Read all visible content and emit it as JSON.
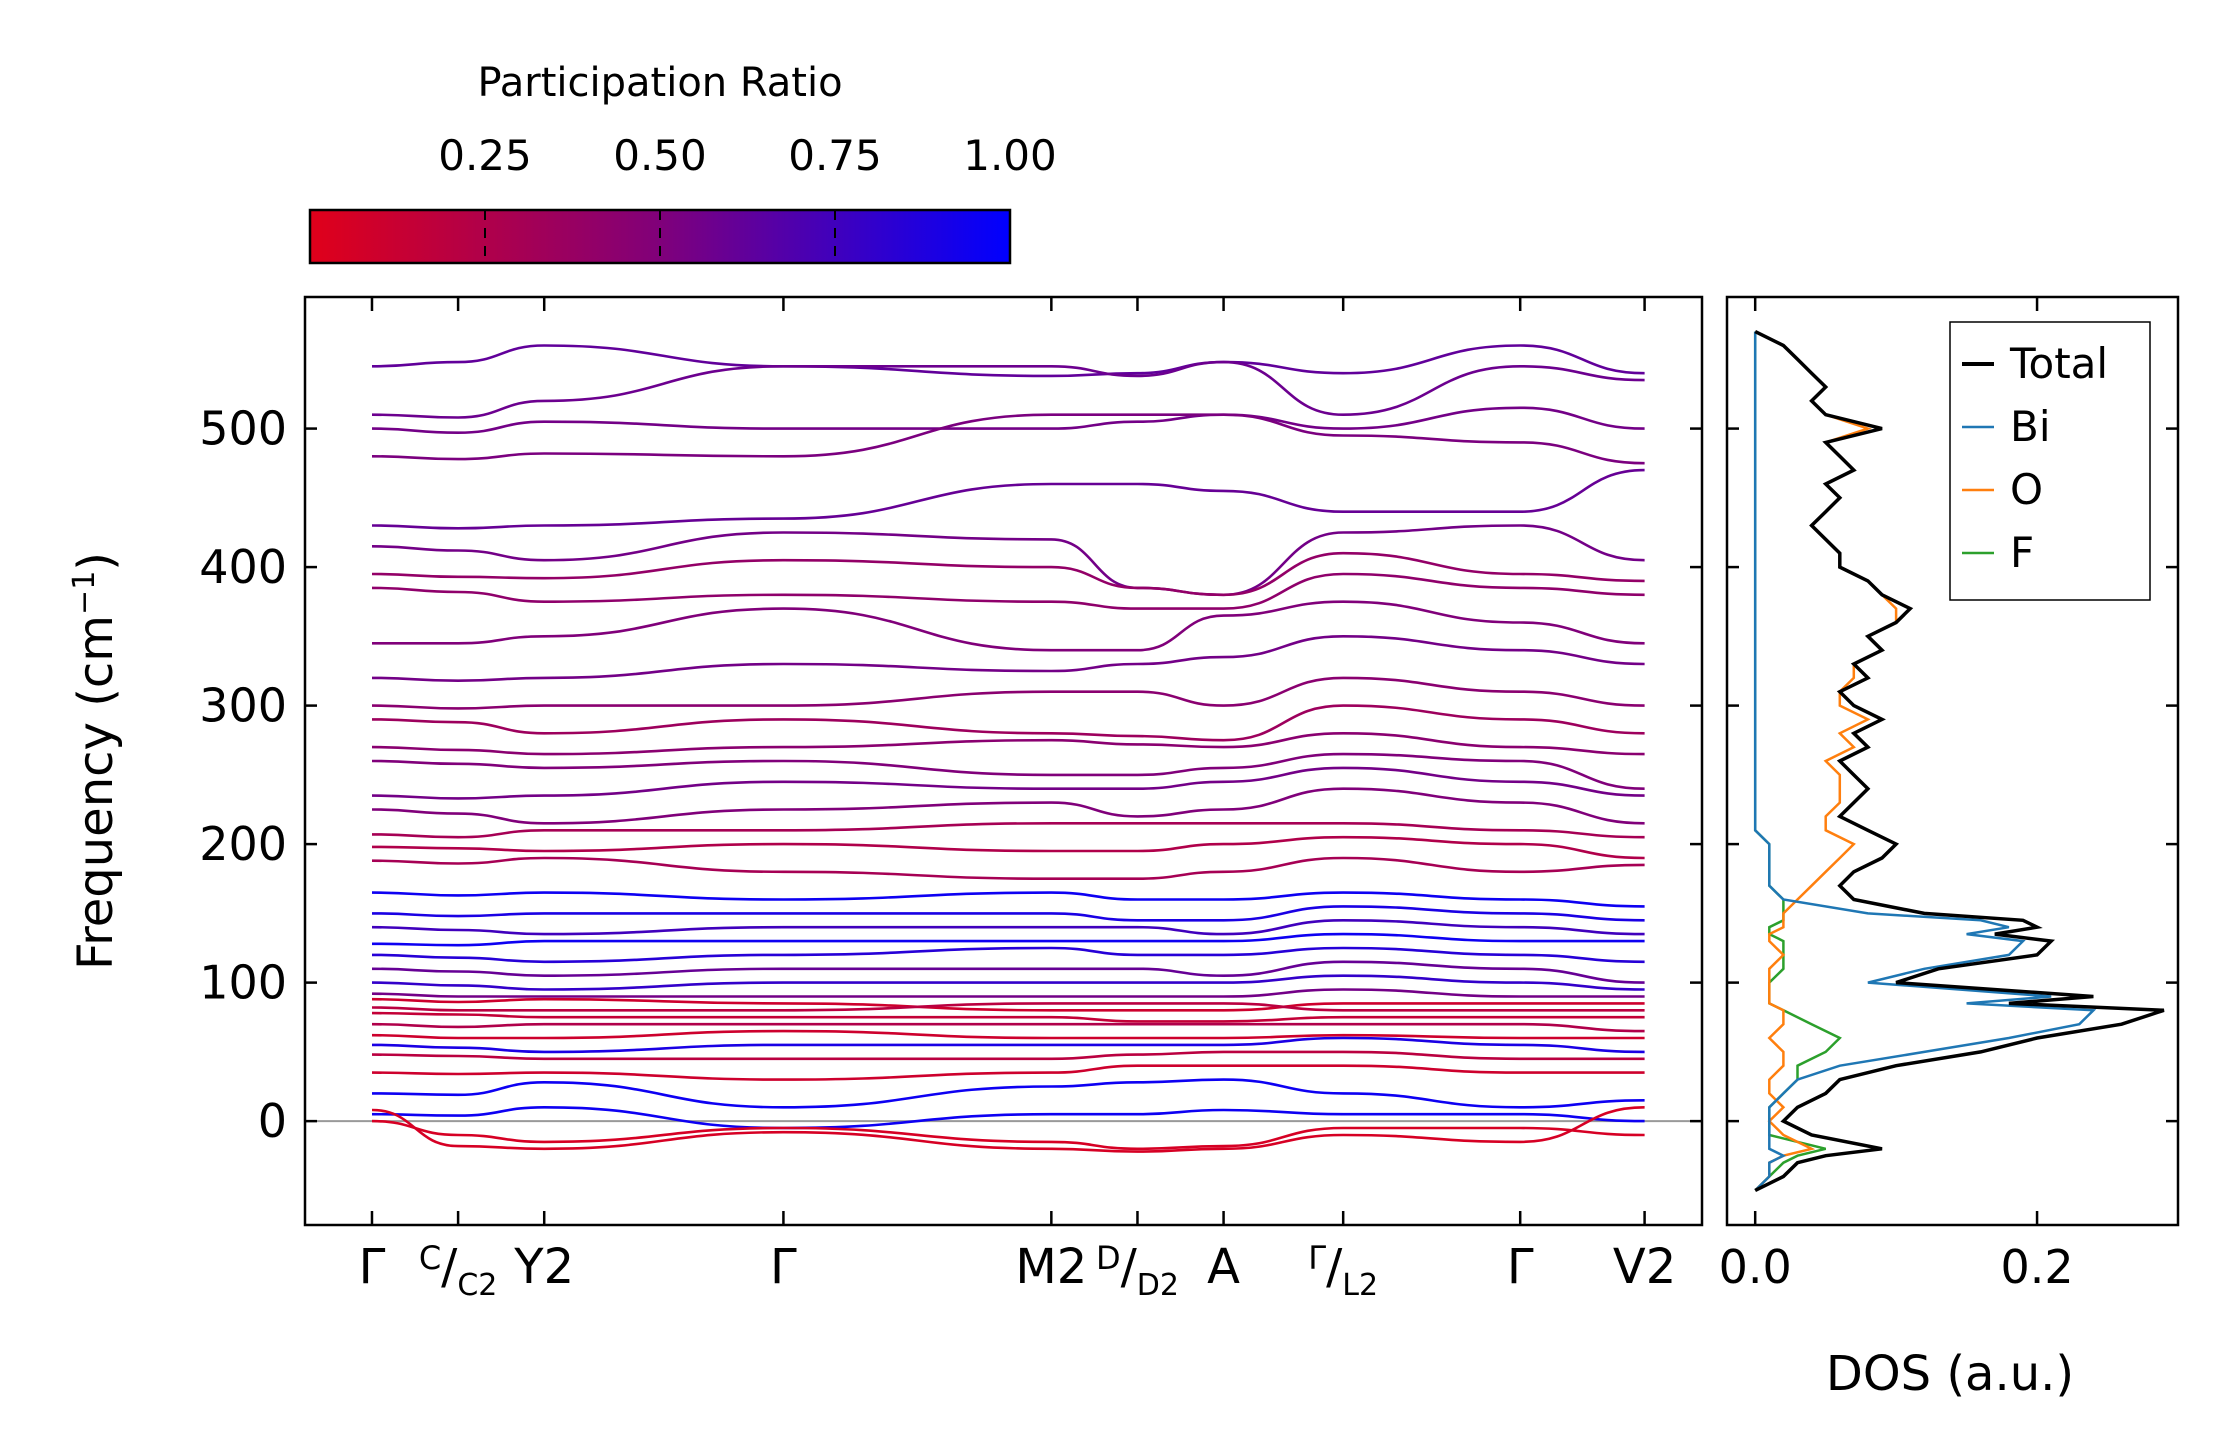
{
  "chart_data": [
    {
      "type": "line",
      "panel": "phonon-band-structure",
      "ylabel": "Frequency (cm",
      "ylabel_sup": "−1",
      "ylabel_close": ")",
      "ylim": [
        -75,
        595
      ],
      "x_positions": [
        0,
        0.9,
        1.8,
        4.3,
        7.1,
        8.0,
        8.9,
        10.15,
        12.0,
        13.3
      ],
      "xlim": [
        -0.7,
        13.9
      ],
      "x_tick_labels": [
        {
          "x": 0,
          "text": "Γ"
        },
        {
          "x": 0.9,
          "text": "C",
          "text2": "/",
          "sub": "C2"
        },
        {
          "x": 1.8,
          "text": "Y",
          "sub": "2"
        },
        {
          "x": 4.3,
          "text": "Γ"
        },
        {
          "x": 7.1,
          "text": "M",
          "sub": "2"
        },
        {
          "x": 8.0,
          "text": "D",
          "text2": "/",
          "sub": "D2"
        },
        {
          "x": 8.9,
          "text": "A"
        },
        {
          "x": 10.15,
          "text": "Γ",
          "text2": "/",
          "sub": "L2"
        },
        {
          "x": 12.0,
          "text": "Γ"
        },
        {
          "x": 13.3,
          "text": "V",
          "sub": "2"
        }
      ],
      "y_ticks": [
        0,
        100,
        200,
        300,
        400,
        500
      ],
      "y_tick_labels": [
        "0",
        "100",
        "200",
        "300",
        "400",
        "500"
      ],
      "zero_line": 0,
      "colormap": {
        "low": "#e0001a",
        "mid": "#80007a",
        "high": "#0000ff"
      },
      "bands": [
        {
          "ys": [
            545,
            548,
            560,
            545,
            538,
            540,
            548,
            540,
            560,
            540
          ],
          "pr": 0.62
        },
        {
          "ys": [
            510,
            508,
            520,
            545,
            545,
            538,
            548,
            510,
            545,
            535
          ],
          "pr": 0.58
        },
        {
          "ys": [
            500,
            497,
            505,
            500,
            500,
            505,
            510,
            500,
            515,
            500
          ],
          "pr": 0.55
        },
        {
          "ys": [
            480,
            478,
            482,
            480,
            510,
            510,
            510,
            495,
            490,
            475
          ],
          "pr": 0.52
        },
        {
          "ys": [
            430,
            428,
            430,
            435,
            460,
            460,
            455,
            440,
            440,
            470
          ],
          "pr": 0.6
        },
        {
          "ys": [
            415,
            412,
            405,
            425,
            420,
            385,
            380,
            425,
            430,
            405
          ],
          "pr": 0.55
        },
        {
          "ys": [
            395,
            393,
            392,
            405,
            400,
            385,
            380,
            410,
            395,
            390
          ],
          "pr": 0.4
        },
        {
          "ys": [
            385,
            382,
            375,
            380,
            375,
            370,
            370,
            395,
            385,
            380
          ],
          "pr": 0.42
        },
        {
          "ys": [
            345,
            345,
            350,
            370,
            340,
            340,
            365,
            375,
            360,
            345
          ],
          "pr": 0.5
        },
        {
          "ys": [
            320,
            318,
            320,
            330,
            325,
            330,
            335,
            350,
            340,
            330
          ],
          "pr": 0.55
        },
        {
          "ys": [
            300,
            298,
            300,
            300,
            310,
            310,
            300,
            320,
            310,
            300
          ],
          "pr": 0.45
        },
        {
          "ys": [
            290,
            288,
            280,
            290,
            280,
            278,
            275,
            300,
            290,
            280
          ],
          "pr": 0.35
        },
        {
          "ys": [
            270,
            268,
            265,
            270,
            275,
            272,
            270,
            280,
            270,
            265
          ],
          "pr": 0.45
        },
        {
          "ys": [
            260,
            258,
            255,
            260,
            250,
            250,
            255,
            265,
            260,
            240
          ],
          "pr": 0.5
        },
        {
          "ys": [
            235,
            233,
            235,
            245,
            240,
            240,
            245,
            255,
            245,
            235
          ],
          "pr": 0.55
        },
        {
          "ys": [
            225,
            222,
            215,
            225,
            230,
            220,
            225,
            240,
            230,
            215
          ],
          "pr": 0.5
        },
        {
          "ys": [
            207,
            205,
            210,
            210,
            215,
            215,
            215,
            215,
            210,
            205
          ],
          "pr": 0.3
        },
        {
          "ys": [
            198,
            197,
            195,
            200,
            195,
            195,
            200,
            205,
            200,
            190
          ],
          "pr": 0.25
        },
        {
          "ys": [
            188,
            186,
            190,
            180,
            175,
            175,
            180,
            190,
            180,
            185
          ],
          "pr": 0.3
        },
        {
          "ys": [
            165,
            163,
            165,
            160,
            165,
            160,
            160,
            165,
            160,
            155
          ],
          "pr": 0.95
        },
        {
          "ys": [
            150,
            148,
            150,
            150,
            150,
            145,
            145,
            155,
            150,
            145
          ],
          "pr": 0.9
        },
        {
          "ys": [
            140,
            138,
            135,
            140,
            140,
            140,
            135,
            145,
            140,
            135
          ],
          "pr": 0.75
        },
        {
          "ys": [
            128,
            127,
            130,
            130,
            130,
            130,
            130,
            135,
            130,
            130
          ],
          "pr": 0.95
        },
        {
          "ys": [
            120,
            118,
            115,
            120,
            125,
            120,
            120,
            125,
            120,
            115
          ],
          "pr": 0.85
        },
        {
          "ys": [
            110,
            108,
            105,
            110,
            110,
            110,
            105,
            115,
            110,
            100
          ],
          "pr": 0.6
        },
        {
          "ys": [
            100,
            98,
            95,
            100,
            100,
            100,
            100,
            105,
            100,
            95
          ],
          "pr": 0.8
        },
        {
          "ys": [
            92,
            90,
            90,
            90,
            90,
            90,
            90,
            95,
            90,
            90
          ],
          "pr": 0.55
        },
        {
          "ys": [
            88,
            86,
            88,
            85,
            80,
            80,
            80,
            85,
            85,
            85
          ],
          "pr": 0.1
        },
        {
          "ys": [
            82,
            80,
            80,
            80,
            85,
            85,
            85,
            80,
            80,
            80
          ],
          "pr": 0.2
        },
        {
          "ys": [
            78,
            77,
            75,
            75,
            75,
            72,
            72,
            75,
            75,
            75
          ],
          "pr": 0.15
        },
        {
          "ys": [
            70,
            68,
            70,
            70,
            70,
            70,
            70,
            70,
            70,
            65
          ],
          "pr": 0.25
        },
        {
          "ys": [
            62,
            60,
            60,
            65,
            60,
            60,
            60,
            62,
            60,
            60
          ],
          "pr": 0.1
        },
        {
          "ys": [
            55,
            53,
            50,
            55,
            55,
            55,
            55,
            60,
            55,
            50
          ],
          "pr": 0.9
        },
        {
          "ys": [
            48,
            47,
            45,
            45,
            45,
            48,
            50,
            50,
            45,
            45
          ],
          "pr": 0.2
        },
        {
          "ys": [
            35,
            34,
            35,
            30,
            35,
            40,
            40,
            40,
            35,
            35
          ],
          "pr": 0.1
        },
        {
          "ys": [
            20,
            19,
            28,
            10,
            25,
            28,
            30,
            20,
            10,
            15
          ],
          "pr": 0.95
        },
        {
          "ys": [
            5,
            4,
            10,
            -5,
            5,
            5,
            8,
            5,
            5,
            0
          ],
          "pr": 0.95
        },
        {
          "ys": [
            0,
            -10,
            -15,
            -5,
            -15,
            -20,
            -18,
            -5,
            -5,
            -10
          ],
          "pr": 0.05
        },
        {
          "ys": [
            8,
            -18,
            -20,
            -8,
            -20,
            -22,
            -20,
            -10,
            -15,
            10
          ],
          "pr": 0.05
        }
      ]
    },
    {
      "type": "line",
      "panel": "density-of-states",
      "xlabel": "DOS (a.u.)",
      "xlim": [
        -0.02,
        0.3
      ],
      "ylim": [
        -75,
        595
      ],
      "x_ticks": [
        0.0,
        0.2
      ],
      "x_tick_labels": [
        "0.0",
        "0.2"
      ],
      "legend": {
        "position": "top-right",
        "entries": [
          "Total",
          "Bi",
          "O",
          "F"
        ]
      },
      "y": [
        -50,
        -40,
        -30,
        -25,
        -20,
        -10,
        0,
        10,
        20,
        30,
        40,
        50,
        60,
        70,
        80,
        85,
        90,
        100,
        110,
        120,
        130,
        135,
        140,
        145,
        150,
        160,
        170,
        180,
        190,
        200,
        210,
        220,
        230,
        240,
        250,
        260,
        270,
        280,
        290,
        300,
        310,
        320,
        330,
        340,
        350,
        360,
        370,
        380,
        390,
        400,
        410,
        420,
        430,
        440,
        450,
        460,
        470,
        480,
        490,
        500,
        510,
        520,
        530,
        540,
        550,
        560,
        570
      ],
      "series": [
        {
          "name": "Total",
          "color": "#000000",
          "values": [
            0.0,
            0.02,
            0.03,
            0.05,
            0.09,
            0.04,
            0.02,
            0.03,
            0.05,
            0.06,
            0.1,
            0.16,
            0.2,
            0.26,
            0.29,
            0.18,
            0.24,
            0.1,
            0.13,
            0.2,
            0.21,
            0.17,
            0.2,
            0.19,
            0.12,
            0.07,
            0.06,
            0.07,
            0.09,
            0.1,
            0.08,
            0.06,
            0.07,
            0.08,
            0.07,
            0.06,
            0.08,
            0.07,
            0.09,
            0.07,
            0.06,
            0.08,
            0.07,
            0.09,
            0.08,
            0.1,
            0.11,
            0.09,
            0.08,
            0.06,
            0.06,
            0.05,
            0.04,
            0.05,
            0.06,
            0.05,
            0.07,
            0.06,
            0.05,
            0.09,
            0.05,
            0.04,
            0.05,
            0.04,
            0.03,
            0.02,
            0.0
          ]
        },
        {
          "name": "Bi",
          "color": "#1f77b4",
          "values": [
            0.0,
            0.01,
            0.01,
            0.02,
            0.01,
            0.01,
            0.01,
            0.01,
            0.02,
            0.03,
            0.06,
            0.12,
            0.18,
            0.23,
            0.24,
            0.15,
            0.21,
            0.08,
            0.12,
            0.18,
            0.19,
            0.15,
            0.18,
            0.16,
            0.08,
            0.02,
            0.01,
            0.01,
            0.01,
            0.01,
            0.0,
            0.0,
            0.0,
            0.0,
            0.0,
            0.0,
            0.0,
            0.0,
            0.0,
            0.0,
            0.0,
            0.0,
            0.0,
            0.0,
            0.0,
            0.0,
            0.0,
            0.0,
            0.0,
            0.0,
            0.0,
            0.0,
            0.0,
            0.0,
            0.0,
            0.0,
            0.0,
            0.0,
            0.0,
            0.0,
            0.0,
            0.0,
            0.0,
            0.0,
            0.0,
            0.0,
            0.0
          ]
        },
        {
          "name": "O",
          "color": "#ff7f0e",
          "values": [
            0.0,
            0.01,
            0.01,
            0.02,
            0.04,
            0.02,
            0.01,
            0.02,
            0.01,
            0.01,
            0.02,
            0.02,
            0.01,
            0.02,
            0.02,
            0.01,
            0.01,
            0.01,
            0.01,
            0.02,
            0.01,
            0.01,
            0.02,
            0.02,
            0.02,
            0.03,
            0.04,
            0.05,
            0.06,
            0.07,
            0.05,
            0.05,
            0.06,
            0.06,
            0.06,
            0.05,
            0.07,
            0.06,
            0.08,
            0.06,
            0.06,
            0.07,
            0.07,
            0.09,
            0.08,
            0.1,
            0.1,
            0.09,
            0.08,
            0.06,
            0.06,
            0.05,
            0.04,
            0.05,
            0.06,
            0.05,
            0.07,
            0.06,
            0.05,
            0.08,
            0.05,
            0.04,
            0.05,
            0.04,
            0.03,
            0.02,
            0.0
          ]
        },
        {
          "name": "F",
          "color": "#2ca02c",
          "values": [
            0.0,
            0.01,
            0.02,
            0.03,
            0.05,
            0.01,
            0.01,
            0.01,
            0.02,
            0.03,
            0.03,
            0.05,
            0.06,
            0.04,
            0.02,
            0.01,
            0.01,
            0.01,
            0.02,
            0.02,
            0.02,
            0.01,
            0.01,
            0.02,
            0.02,
            0.02,
            0.01,
            0.01,
            0.01,
            0.01,
            0.0,
            0.0,
            0.0,
            0.0,
            0.0,
            0.0,
            0.0,
            0.0,
            0.0,
            0.0,
            0.0,
            0.0,
            0.0,
            0.0,
            0.0,
            0.0,
            0.0,
            0.0,
            0.0,
            0.0,
            0.0,
            0.0,
            0.0,
            0.0,
            0.0,
            0.0,
            0.0,
            0.0,
            0.0,
            0.0,
            0.0,
            0.0,
            0.0,
            0.0,
            0.0,
            0.0,
            0.0
          ]
        }
      ]
    },
    {
      "type": "heatmap",
      "panel": "colorbar",
      "title": "Participation Ratio",
      "range": [
        0.0,
        1.0
      ],
      "ticks": [
        0.25,
        0.5,
        0.75,
        1.0
      ],
      "tick_labels": [
        "0.25",
        "0.50",
        "0.75",
        "1.00"
      ]
    }
  ]
}
